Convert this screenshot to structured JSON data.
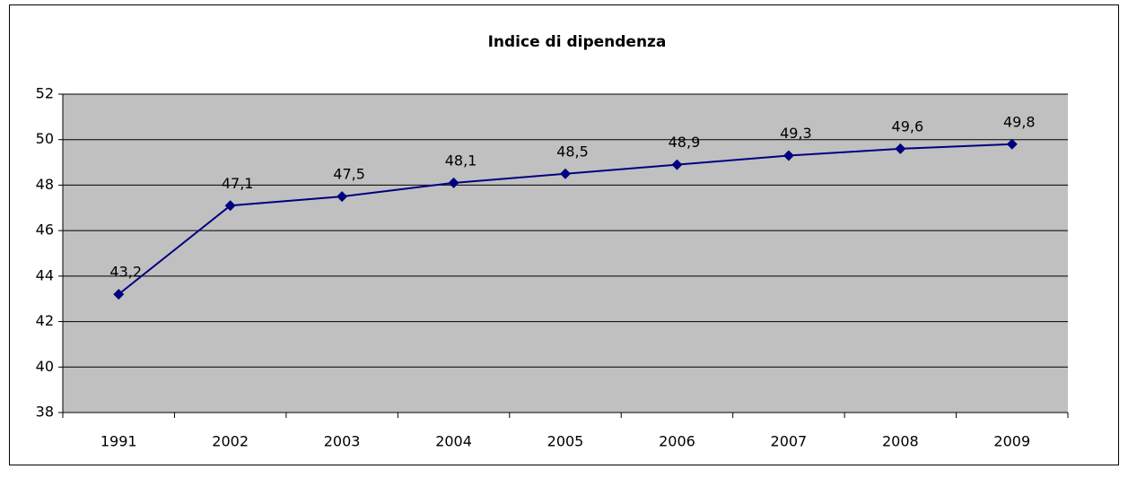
{
  "chart_data": {
    "type": "line",
    "title": "Indice di dipendenza",
    "categories": [
      "1991",
      "2002",
      "2003",
      "2004",
      "2005",
      "2006",
      "2007",
      "2008",
      "2009"
    ],
    "values": [
      43.2,
      47.1,
      47.5,
      48.1,
      48.5,
      48.9,
      49.3,
      49.6,
      49.8
    ],
    "value_labels": [
      "43,2",
      "47,1",
      "47,5",
      "48,1",
      "48,5",
      "48,9",
      "49,3",
      "49,6",
      "49,8"
    ],
    "color": "#000080",
    "ylim": [
      38,
      52
    ],
    "yticks": [
      38,
      40,
      42,
      44,
      46,
      48,
      50,
      52
    ],
    "grid": true
  }
}
